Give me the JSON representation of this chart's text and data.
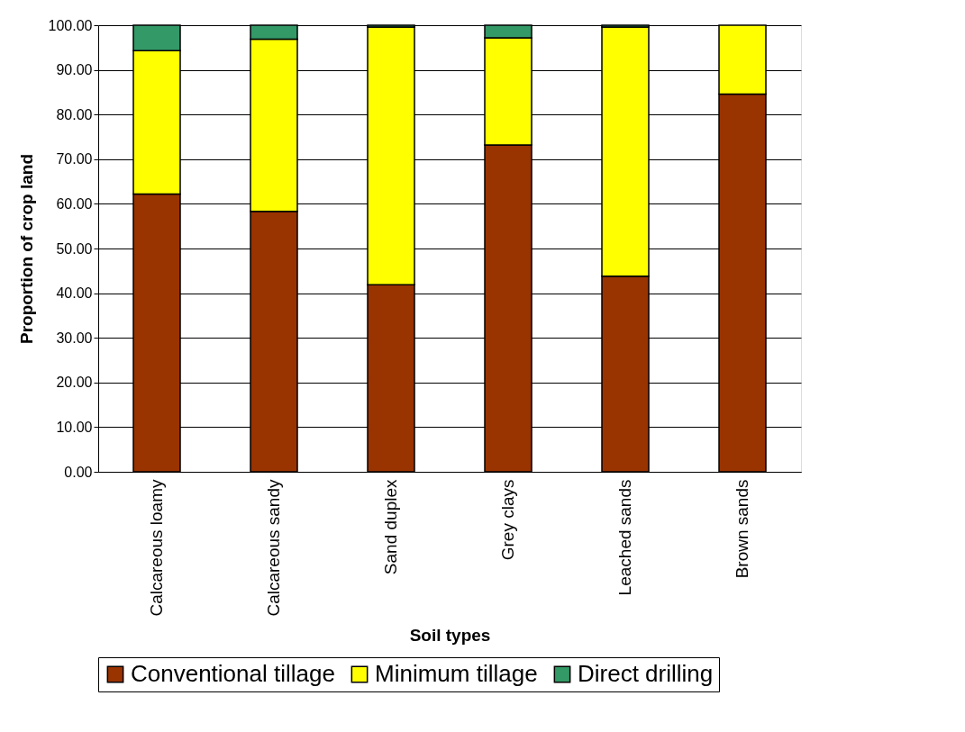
{
  "chart_data": {
    "type": "bar",
    "stacked": true,
    "xlabel": "Soil types",
    "ylabel": "Proportion of crop land",
    "categories": [
      "Calcareous loamy",
      "Calcareous sandy",
      "Sand duplex",
      "Grey clays",
      "Leached sands",
      "Brown sands"
    ],
    "series": [
      {
        "name": "Conventional tillage",
        "color": "#993300",
        "values": [
          62.2,
          58.3,
          41.9,
          73.2,
          43.8,
          84.6
        ]
      },
      {
        "name": "Minimum tillage",
        "color": "#ffff00",
        "values": [
          32.1,
          38.6,
          57.7,
          24.0,
          55.8,
          15.4
        ]
      },
      {
        "name": "Direct drilling",
        "color": "#339966",
        "values": [
          5.7,
          3.1,
          0.4,
          2.8,
          0.4,
          null
        ]
      }
    ],
    "ylim": [
      0,
      100
    ],
    "yticks": [
      {
        "value": 0,
        "label": "0.00"
      },
      {
        "value": 10,
        "label": "10.00"
      },
      {
        "value": 20,
        "label": "20.00"
      },
      {
        "value": 30,
        "label": "30.00"
      },
      {
        "value": 40,
        "label": "40.00"
      },
      {
        "value": 50,
        "label": "50.00"
      },
      {
        "value": 60,
        "label": "60.00"
      },
      {
        "value": 70,
        "label": "70.00"
      },
      {
        "value": 80,
        "label": "80.00"
      },
      {
        "value": 90,
        "label": "90.00"
      },
      {
        "value": 100,
        "label": "100.00"
      }
    ],
    "grid": "y",
    "legend": "bottom"
  }
}
